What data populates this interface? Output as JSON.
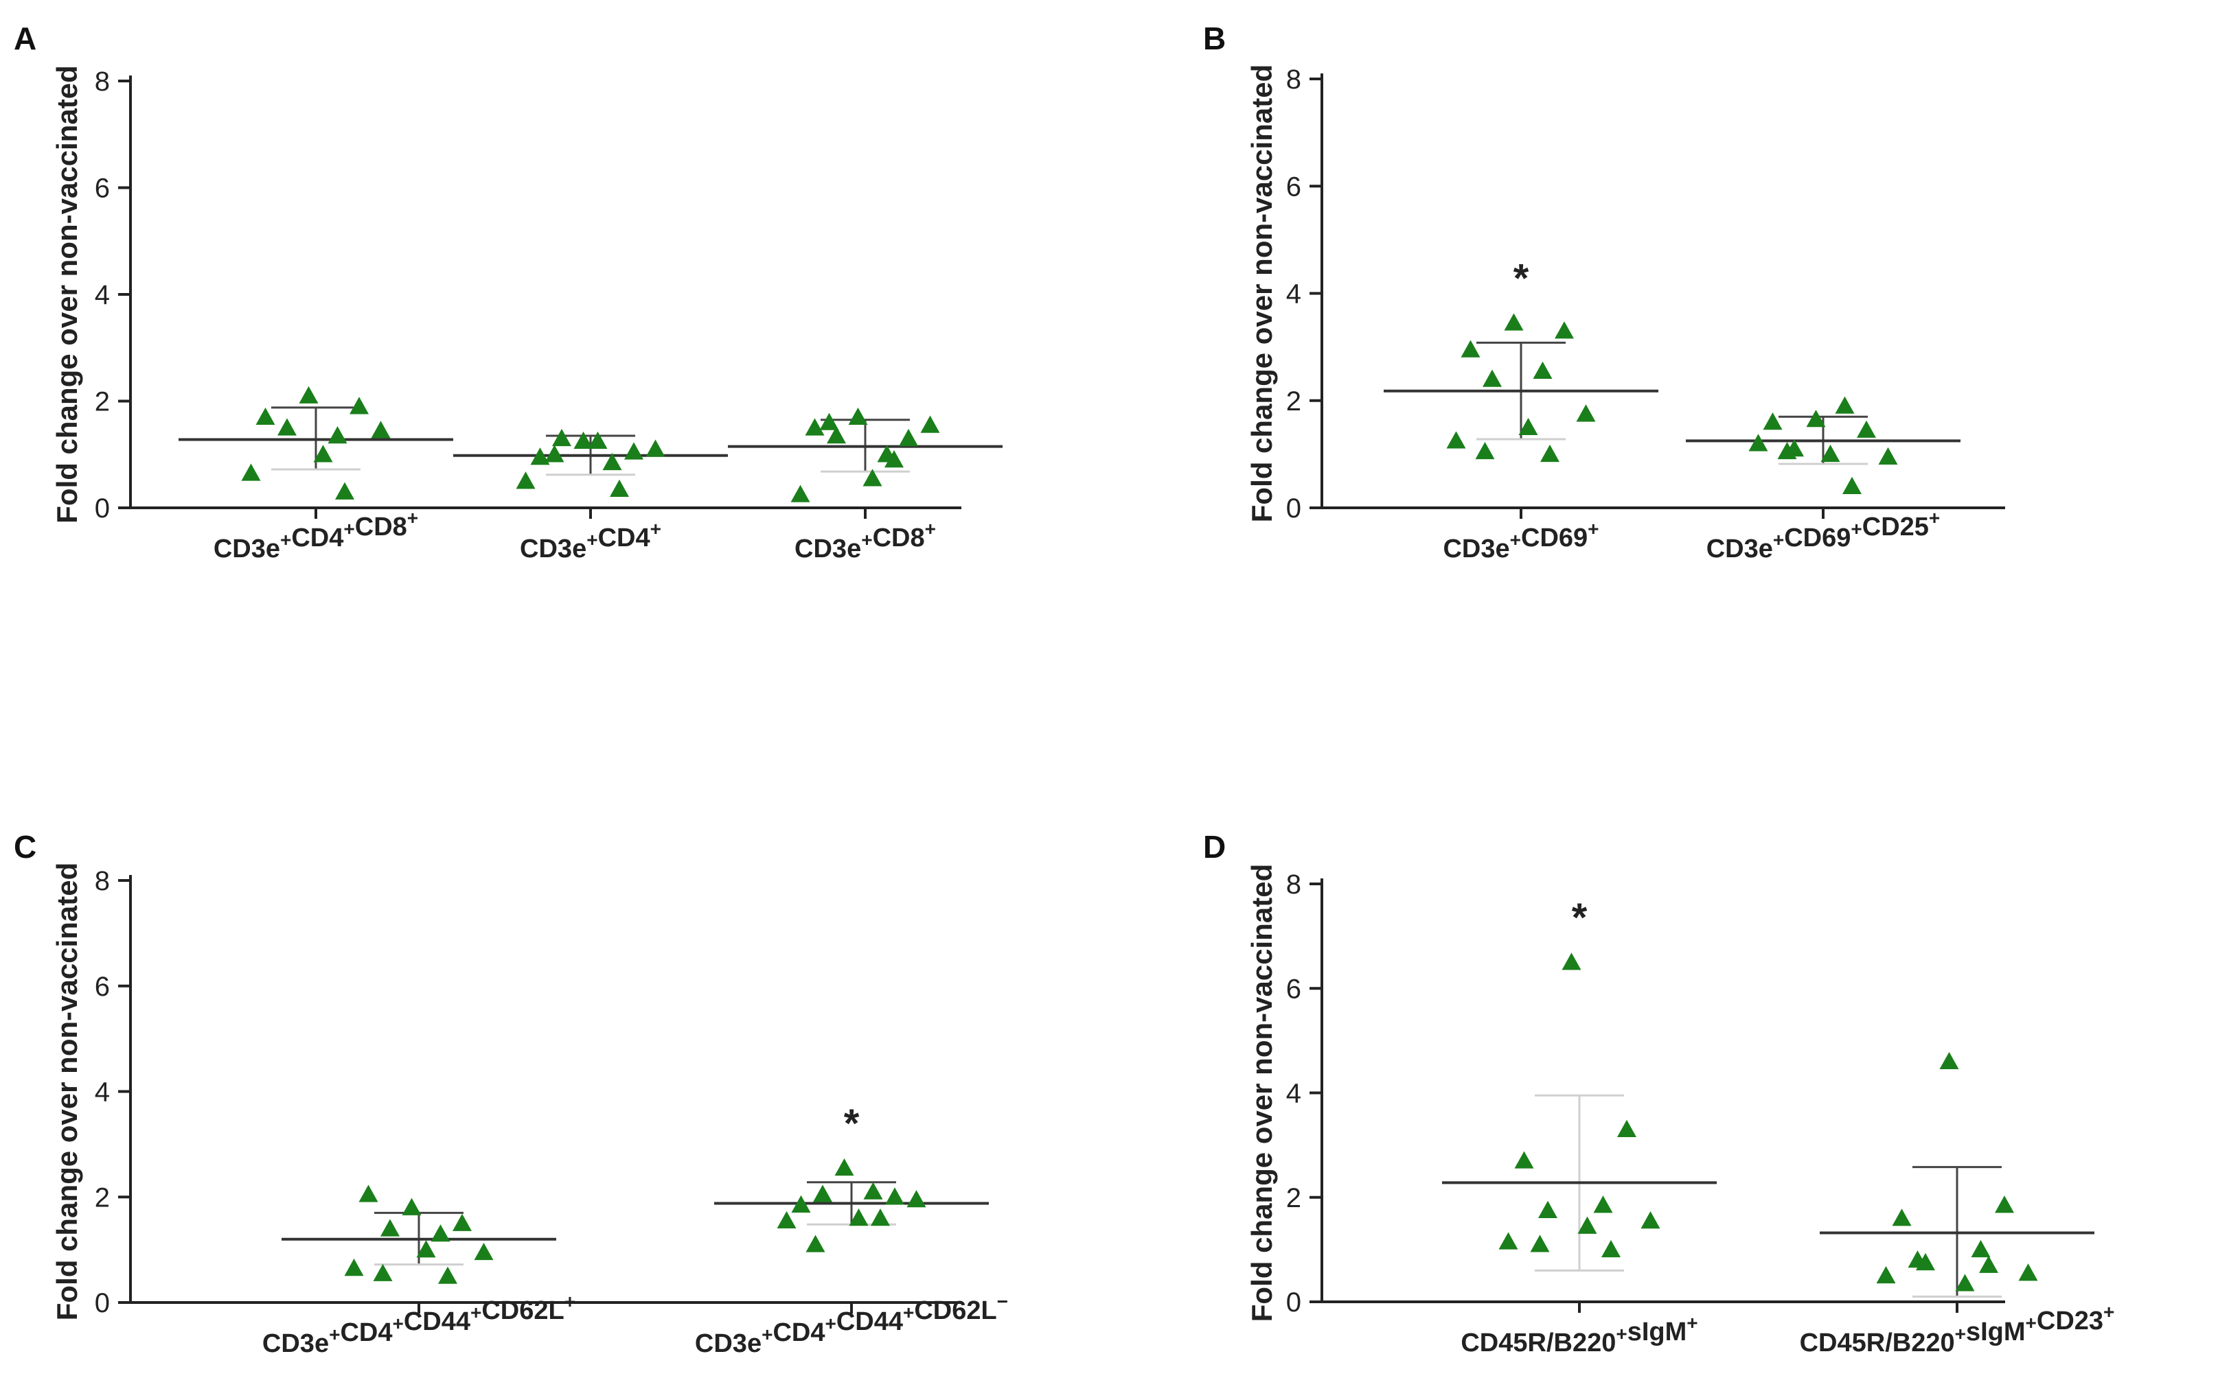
{
  "figure": {
    "colors": {
      "point": "#1a7f1a",
      "line": "#333333",
      "errorbar_light": "#cfcfcf",
      "text": "#222222"
    }
  },
  "chart_data": [
    {
      "id": "A",
      "type": "scatter",
      "panel_letter": "A",
      "ylabel": "Fold change over non-vaccinated",
      "ylim": [
        0,
        8
      ],
      "yticks": [
        0,
        2,
        4,
        6,
        8
      ],
      "categories": [
        {
          "base": "CD3e",
          "parts": [
            [
              "CD3e",
              "+"
            ],
            [
              "CD4",
              "+"
            ],
            [
              "CD8",
              "+"
            ]
          ],
          "mean": 1.28,
          "sd_low": 0.72,
          "sd_high": 1.88,
          "significant": false,
          "points": [
            2.1,
            1.9,
            1.7,
            1.35,
            1.5,
            1.45,
            1.0,
            0.65,
            0.3
          ]
        },
        {
          "base": "CD3e",
          "parts": [
            [
              "CD3e",
              "+"
            ],
            [
              "CD4",
              "+"
            ]
          ],
          "mean": 0.98,
          "sd_low": 0.62,
          "sd_high": 1.35,
          "significant": false,
          "points": [
            1.25,
            1.05,
            0.95,
            0.85,
            1.3,
            1.1,
            1.25,
            0.5,
            0.35,
            1.0
          ]
        },
        {
          "base": "CD3e",
          "parts": [
            [
              "CD3e",
              "+"
            ],
            [
              "CD8",
              "+"
            ]
          ],
          "mean": 1.15,
          "sd_low": 0.68,
          "sd_high": 1.65,
          "significant": false,
          "points": [
            1.7,
            1.3,
            1.5,
            1.0,
            1.35,
            1.55,
            0.55,
            0.25,
            0.9,
            1.6
          ]
        }
      ]
    },
    {
      "id": "B",
      "type": "scatter",
      "panel_letter": "B",
      "ylabel": "Fold change over non-vaccinated",
      "ylim": [
        0,
        8
      ],
      "yticks": [
        0,
        2,
        4,
        6,
        8
      ],
      "categories": [
        {
          "parts": [
            [
              "CD3e",
              "+"
            ],
            [
              "CD69",
              "+"
            ]
          ],
          "mean": 2.18,
          "sd_low": 1.28,
          "sd_high": 3.08,
          "significant": true,
          "sig_label": "*",
          "points": [
            3.45,
            3.3,
            2.95,
            2.55,
            2.4,
            1.75,
            1.5,
            1.25,
            1.0,
            1.05
          ]
        },
        {
          "parts": [
            [
              "CD3e",
              "+"
            ],
            [
              "CD69",
              "+"
            ],
            [
              "CD25",
              "+"
            ]
          ],
          "mean": 1.25,
          "sd_low": 0.82,
          "sd_high": 1.7,
          "significant": false,
          "points": [
            1.65,
            1.45,
            1.6,
            1.9,
            1.1,
            0.95,
            1.0,
            1.2,
            0.4,
            1.05
          ]
        }
      ]
    },
    {
      "id": "C",
      "type": "scatter",
      "panel_letter": "C",
      "ylabel": "Fold change over non-vaccinated",
      "ylim": [
        0,
        8
      ],
      "yticks": [
        0,
        2,
        4,
        6,
        8
      ],
      "categories": [
        {
          "parts": [
            [
              "CD3e",
              "+"
            ],
            [
              "CD4",
              "+"
            ],
            [
              "CD44",
              "+"
            ],
            [
              "CD62L",
              "+"
            ]
          ],
          "mean": 1.2,
          "sd_low": 0.72,
          "sd_high": 1.7,
          "significant": false,
          "points": [
            1.8,
            1.5,
            2.05,
            1.3,
            1.4,
            0.95,
            1.0,
            0.65,
            0.5,
            0.55
          ]
        },
        {
          "parts": [
            [
              "CD3e",
              "+"
            ],
            [
              "CD4",
              "+"
            ],
            [
              "CD44",
              "+"
            ],
            [
              "CD62L",
              "−"
            ]
          ],
          "mean": 1.88,
          "sd_low": 1.48,
          "sd_high": 2.28,
          "significant": true,
          "sig_label": "*",
          "points": [
            2.55,
            2.0,
            1.85,
            2.1,
            2.05,
            1.95,
            1.6,
            1.55,
            1.6,
            1.1
          ]
        }
      ]
    },
    {
      "id": "D",
      "type": "scatter",
      "panel_letter": "D",
      "ylabel": "Fold change over non-vaccinated",
      "ylim": [
        0,
        8
      ],
      "yticks": [
        0,
        2,
        4,
        6,
        8
      ],
      "categories": [
        {
          "parts": [
            [
              "CD45R/B220",
              "+"
            ],
            [
              "sIgM",
              "+"
            ]
          ],
          "mean": 2.28,
          "sd_low": 0.6,
          "sd_high": 3.95,
          "significant": true,
          "sig_label": "*",
          "points": [
            6.5,
            3.3,
            2.7,
            1.85,
            1.75,
            1.55,
            1.45,
            1.15,
            1.0,
            1.1
          ]
        },
        {
          "parts": [
            [
              "CD45R/B220",
              "+"
            ],
            [
              "sIgM",
              "+"
            ],
            [
              "CD23",
              "+"
            ]
          ],
          "mean": 1.32,
          "sd_low": 0.1,
          "sd_high": 2.58,
          "significant": false,
          "points": [
            4.6,
            1.85,
            1.6,
            1.0,
            0.75,
            0.55,
            0.35,
            0.5,
            0.7,
            0.8
          ]
        }
      ]
    }
  ]
}
